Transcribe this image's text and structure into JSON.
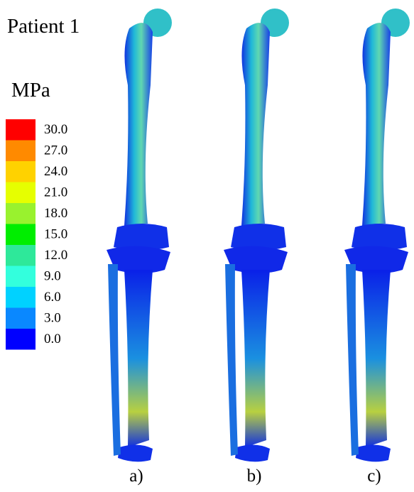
{
  "header": {
    "title": "Patient 1",
    "unit": "MPa"
  },
  "legend": {
    "entries": [
      {
        "label": "30.0",
        "color": "#ff0000"
      },
      {
        "label": "27.0",
        "color": "#ff8a00"
      },
      {
        "label": "24.0",
        "color": "#ffd200"
      },
      {
        "label": "21.0",
        "color": "#e6ff00"
      },
      {
        "label": "18.0",
        "color": "#99f22e"
      },
      {
        "label": "15.0",
        "color": "#00ee00"
      },
      {
        "label": "12.0",
        "color": "#2ee89a"
      },
      {
        "label": "9.0",
        "color": "#33ffdd"
      },
      {
        "label": "6.0",
        "color": "#00d2ff"
      },
      {
        "label": "3.0",
        "color": "#0a88ff"
      },
      {
        "label": "0.0",
        "color": "#0000ff"
      }
    ]
  },
  "panels": [
    {
      "label": "a)"
    },
    {
      "label": "b)"
    },
    {
      "label": "c)"
    }
  ]
}
